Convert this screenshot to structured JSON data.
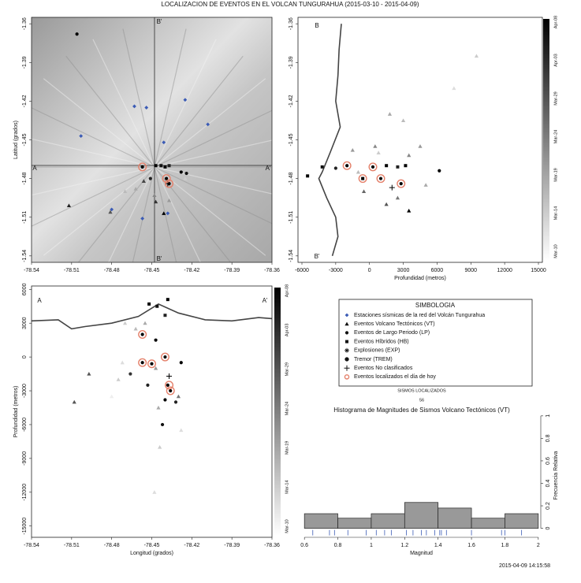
{
  "title": "LOCALIZACION DE EVENTOS EN EL VOLCAN TUNGURAHUA (2015-03-10 - 2015-04-09)",
  "timestamp": "2015-04-09 14:15:58",
  "legend_title": "SIMBOLOGIA",
  "chart_data": [
    {
      "type": "scatter",
      "ylabel": "Latitud (grados)",
      "xlim": [
        -78.54,
        -78.36
      ],
      "ylim": [
        -1.545,
        -1.355
      ],
      "xticks": [
        -78.54,
        -78.51,
        -78.48,
        -78.45,
        -78.42,
        -78.39,
        -78.36
      ],
      "yticks": [
        -1.36,
        -1.39,
        -1.42,
        -1.45,
        -1.48,
        -1.51,
        -1.54
      ],
      "annotations": [
        "A",
        "A'",
        "B'",
        "B'"
      ],
      "series": [
        {
          "name": "Estaciones sísmicas de la red del Volcán Tungurahua",
          "marker": "diamond",
          "color": "#3b5bb5",
          "x": [
            -78.463,
            -78.454,
            -78.425,
            -78.408,
            -78.503,
            -78.441,
            -78.48,
            -78.457,
            -78.438
          ],
          "y": [
            -1.424,
            -1.425,
            -1.419,
            -1.438,
            -1.447,
            -1.452,
            -1.504,
            -1.511,
            -1.507
          ]
        },
        {
          "name": "Eventos Volcano Tectónicos (VT)",
          "marker": "triangle",
          "x": [
            -78.512,
            -78.481,
            -78.448,
            -78.447,
            -78.437,
            -78.456,
            -78.441,
            -78.462,
            -78.47,
            -78.425
          ],
          "y": [
            -1.501,
            -1.506,
            -1.493,
            -1.498,
            -1.497,
            -1.482,
            -1.507,
            -1.488,
            -1.49,
            -1.48
          ],
          "colors": [
            "#222222",
            "#555555",
            "#888888",
            "#333333",
            "#999999",
            "#444444",
            "#000000",
            "#aaaaaa",
            "#bbbbbb",
            "#cccccc"
          ]
        },
        {
          "name": "Eventos de Largo Periodo (LP)",
          "marker": "circle",
          "x": [
            -78.506,
            -78.428,
            -78.424,
            -78.451,
            -78.457,
            -78.439,
            -78.437
          ],
          "y": [
            -1.368,
            -1.475,
            -1.476,
            -1.48,
            -1.471,
            -1.48,
            -1.484
          ],
          "colors": [
            "#000000",
            "#000000",
            "#111111",
            "#222222",
            "#000000",
            "#000000",
            "#000000"
          ]
        },
        {
          "name": "Eventos Híbridos (HB)",
          "marker": "square",
          "x": [
            -78.447,
            -78.443,
            -78.44,
            -78.437
          ],
          "y": [
            -1.47,
            -1.47,
            -1.471,
            -1.47
          ],
          "colors": [
            "#000000",
            "#111111",
            "#000000",
            "#222222"
          ]
        },
        {
          "name": "Explosiones (EXP)",
          "marker": "star",
          "x": [],
          "y": [],
          "colors": []
        },
        {
          "name": "Tremor (TREM)",
          "marker": "octagon",
          "x": [],
          "y": [],
          "colors": []
        },
        {
          "name": "Eventos No clasificados",
          "marker": "plus",
          "x": [
            -78.438
          ],
          "y": [
            -1.484
          ],
          "colors": [
            "#000000"
          ]
        },
        {
          "name": "Eventos localizados el día de hoy",
          "marker": "ring",
          "color": "#e4806a",
          "x": [
            -78.457,
            -78.439,
            -78.437
          ],
          "y": [
            -1.471,
            -1.48,
            -1.484
          ]
        }
      ]
    },
    {
      "type": "scatter",
      "xlabel": "Profundidad (metros)",
      "xlim": [
        -6350,
        15350
      ],
      "ylim": [
        -1.545,
        -1.355
      ],
      "xticks": [
        -6000,
        -3000,
        0,
        3000,
        6000,
        9000,
        12000,
        15000
      ],
      "yticks": [
        -1.36,
        -1.39,
        -1.42,
        -1.45,
        -1.48,
        -1.51,
        -1.54
      ],
      "annotations": [
        "B",
        "B'"
      ],
      "colorbar": [
        "Apr-08",
        "Apr-03",
        "Mar-29",
        "Mar-24",
        "Mar-19",
        "Mar-14",
        "Mar-10"
      ],
      "profile": {
        "x": [
          -2500,
          -2700,
          -2800,
          -3000,
          -2600,
          -3500,
          -4200,
          -4500,
          -3800,
          -3000,
          -2800,
          -3300
        ],
        "y": [
          -1.36,
          -1.38,
          -1.4,
          -1.42,
          -1.44,
          -1.46,
          -1.475,
          -1.48,
          -1.495,
          -1.51,
          -1.525,
          -1.54
        ]
      },
      "series": [
        {
          "marker": "triangle",
          "x": [
            9500,
            7500,
            3000,
            1800,
            4500,
            500,
            -1500,
            3500,
            -500,
            1500,
            2500,
            3500,
            5000,
            -1000,
            800
          ],
          "y": [
            -1.385,
            -1.41,
            -1.435,
            -1.43,
            -1.455,
            -1.455,
            -1.458,
            -1.462,
            -1.49,
            -1.5,
            -1.495,
            -1.505,
            -1.485,
            -1.475,
            -1.46
          ],
          "colors": [
            "#cccccc",
            "#dddddd",
            "#bbbbbb",
            "#aaaaaa",
            "#999999",
            "#888888",
            "#999999",
            "#888888",
            "#666666",
            "#555555",
            "#777777",
            "#000000",
            "#aaaaaa",
            "#bbbbbb",
            "#cccccc"
          ]
        },
        {
          "marker": "circle",
          "x": [
            -2000,
            300,
            1000,
            2800,
            6200,
            -3000
          ],
          "y": [
            -1.47,
            -1.471,
            -1.48,
            -1.484,
            -1.474,
            -1.472
          ],
          "colors": [
            "#000000",
            "#000000",
            "#111111",
            "#000000",
            "#000000",
            "#222222"
          ]
        },
        {
          "marker": "square",
          "x": [
            -5500,
            -4200,
            -600,
            1500,
            2500,
            3200
          ],
          "y": [
            -1.478,
            -1.471,
            -1.48,
            -1.47,
            -1.471,
            -1.47
          ],
          "colors": [
            "#000000",
            "#111111",
            "#000000",
            "#000000",
            "#222222",
            "#000000"
          ]
        },
        {
          "marker": "plus",
          "x": [
            2000
          ],
          "y": [
            -1.487
          ],
          "colors": [
            "#000000"
          ]
        },
        {
          "marker": "ring",
          "color": "#e4806a",
          "x": [
            -2000,
            300,
            1000,
            2800,
            -600
          ],
          "y": [
            -1.47,
            -1.471,
            -1.48,
            -1.484,
            -1.48
          ]
        }
      ]
    },
    {
      "type": "scatter",
      "xlabel": "Longitud (grados)",
      "ylabel": "Profundidad (metros)",
      "xlim": [
        -78.54,
        -78.36
      ],
      "ylim": [
        -16000,
        6300
      ],
      "xticks": [
        -78.54,
        -78.51,
        -78.48,
        -78.45,
        -78.42,
        -78.39,
        -78.36
      ],
      "yticks": [
        6000,
        3000,
        0,
        -3000,
        -6000,
        -9000,
        -12000,
        -15000
      ],
      "annotations": [
        "A",
        "A'"
      ],
      "colorbar": [
        "Apr-08",
        "Apr-03",
        "Mar-29",
        "Mar-24",
        "Mar-19",
        "Mar-14",
        "Mar-10"
      ],
      "profile": {
        "x": [
          -78.54,
          -78.52,
          -78.51,
          -78.5,
          -78.48,
          -78.46,
          -78.445,
          -78.43,
          -78.41,
          -78.39,
          -78.37,
          -78.36
        ],
        "y": [
          3200,
          3300,
          2500,
          2700,
          3000,
          3600,
          4700,
          3900,
          3300,
          3200,
          3500,
          3400
        ]
      },
      "series": [
        {
          "marker": "triangle",
          "x": [
            -78.497,
            -78.508,
            -78.475,
            -78.47,
            -78.462,
            -78.455,
            -78.447,
            -78.445,
            -78.43,
            -78.428,
            -78.448,
            -78.472,
            -78.48,
            -78.444
          ],
          "y": [
            -1500,
            -4000,
            -2000,
            3000,
            2500,
            3000,
            -1000,
            -4500,
            -3500,
            -6500,
            -12000,
            -500,
            -3500,
            -8000
          ],
          "colors": [
            "#555555",
            "#555555",
            "#cccccc",
            "#cccccc",
            "#bbbbbb",
            "#aaaaaa",
            "#999999",
            "#aaaaaa",
            "#777777",
            "#dddddd",
            "#dddddd",
            "#dddddd",
            "#eeeeee",
            "#cccccc"
          ]
        },
        {
          "marker": "circle",
          "x": [
            -78.457,
            -78.457,
            -78.45,
            -78.44,
            -78.438,
            -78.436,
            -78.432,
            -78.442,
            -78.428,
            -78.466,
            -78.447,
            -78.44,
            -78.453
          ],
          "y": [
            2000,
            -500,
            -600,
            0,
            -2500,
            -3000,
            -4000,
            -6000,
            -500,
            -1500,
            1500,
            -3800,
            -2500
          ],
          "colors": [
            "#000000",
            "#000000",
            "#000000",
            "#111111",
            "#000000",
            "#000000",
            "#222222",
            "#111111",
            "#000000",
            "#333333",
            "#000000",
            "#000000",
            "#222222"
          ]
        },
        {
          "marker": "square",
          "x": [
            -78.452,
            -78.446,
            -78.438,
            -78.44
          ],
          "y": [
            4700,
            4500,
            5100,
            3700
          ],
          "colors": [
            "#000000",
            "#111111",
            "#000000",
            "#222222"
          ]
        },
        {
          "marker": "plus",
          "x": [
            -78.437
          ],
          "y": [
            -1700
          ],
          "colors": [
            "#000000"
          ]
        },
        {
          "marker": "ring",
          "color": "#e4806a",
          "x": [
            -78.457,
            -78.457,
            -78.45,
            -78.44,
            -78.437,
            -78.436
          ],
          "y": [
            2000,
            -500,
            -600,
            0,
            -2500,
            -3000
          ]
        }
      ]
    },
    {
      "type": "histogram",
      "subtitle": "SISMOS LOCALIZADOS",
      "count": 56,
      "title": "Histograma de Magnitudes de Sismos Volcano Tectónicos (VT)",
      "xlabel": "Magnitud",
      "ylabel": "Frecuencia Relativa",
      "color": "#999999",
      "bins": [
        0.6,
        0.8,
        1.0,
        1.2,
        1.4,
        1.6,
        1.8,
        2.0
      ],
      "values": [
        0.13,
        0.09,
        0.13,
        0.23,
        0.18,
        0.09,
        0.13
      ],
      "rug": [
        0.65,
        0.75,
        0.78,
        0.86,
        0.97,
        1.03,
        1.08,
        1.12,
        1.21,
        1.25,
        1.3,
        1.33,
        1.38,
        1.41,
        1.42,
        1.45,
        1.6,
        1.78,
        1.8,
        1.9
      ],
      "rug_color": "#3b5bb5",
      "xlim": [
        0.585,
        2.015
      ],
      "ylim": [
        -0.08,
        1.02
      ],
      "xticks": [
        0.6,
        0.8,
        1.0,
        1.2,
        1.4,
        1.6,
        1.8,
        2.0
      ],
      "yticks": [
        0.0,
        0.2,
        0.4,
        0.6,
        0.8,
        1.0
      ]
    }
  ]
}
